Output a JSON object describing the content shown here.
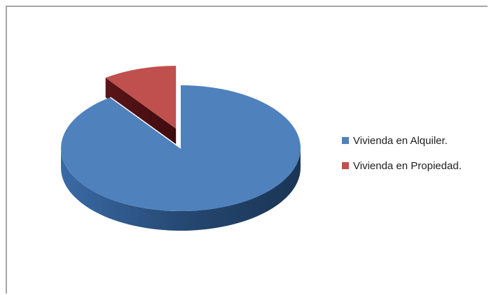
{
  "chart_data": {
    "type": "pie",
    "three_d": true,
    "exploded_slice": "Vivienda en Propiedad.",
    "legend_position": "right",
    "categories": [
      "Vivienda en Alquiler.",
      "Vivienda en Propiedad."
    ],
    "values": [
      90,
      10
    ],
    "colors": [
      "#4f81bd",
      "#c0504d"
    ]
  }
}
